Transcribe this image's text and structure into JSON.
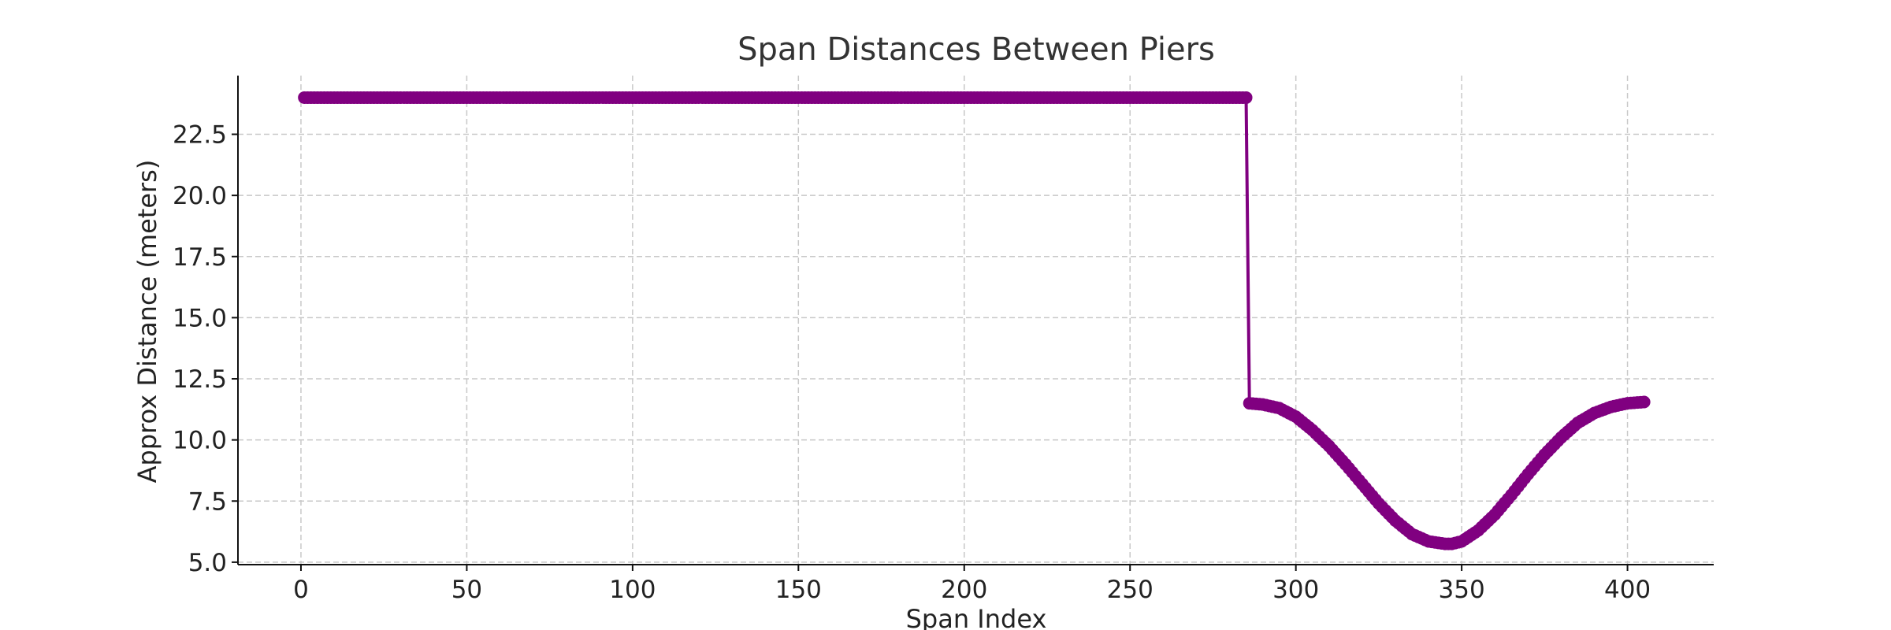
{
  "chart_data": {
    "type": "line",
    "title": "Span Distances Between Piers",
    "xlabel": "Span Index",
    "ylabel": "Approx Distance (meters)",
    "xlim": [
      -19,
      426
    ],
    "ylim": [
      4.9,
      24.9
    ],
    "xticks": [
      0,
      50,
      100,
      150,
      200,
      250,
      300,
      350,
      400
    ],
    "yticks": [
      5.0,
      7.5,
      10.0,
      12.5,
      15.0,
      17.5,
      20.0,
      22.5
    ],
    "xtick_labels": [
      "0",
      "50",
      "100",
      "150",
      "200",
      "250",
      "300",
      "350",
      "400"
    ],
    "ytick_labels": [
      "5.0",
      "7.5",
      "10.0",
      "12.5",
      "15.0",
      "17.5",
      "20.0",
      "22.5"
    ],
    "grid": true,
    "series": [
      {
        "color": "#800080",
        "marker": "circle",
        "segments": [
          {
            "x_range": [
              1,
              285
            ],
            "value": 24.0
          },
          {
            "x": [
              286,
              290,
              295,
              300,
              305,
              310,
              315,
              320,
              325,
              330,
              335,
              340,
              345,
              347,
              350,
              355,
              360,
              365,
              370,
              375,
              380,
              385,
              390,
              395,
              400,
              405
            ],
            "y": [
              11.5,
              11.45,
              11.3,
              10.95,
              10.4,
              9.75,
              9.0,
              8.2,
              7.4,
              6.7,
              6.15,
              5.85,
              5.75,
              5.75,
              5.85,
              6.3,
              6.95,
              7.75,
              8.6,
              9.4,
              10.1,
              10.7,
              11.1,
              11.35,
              11.5,
              11.55
            ]
          }
        ]
      }
    ]
  }
}
